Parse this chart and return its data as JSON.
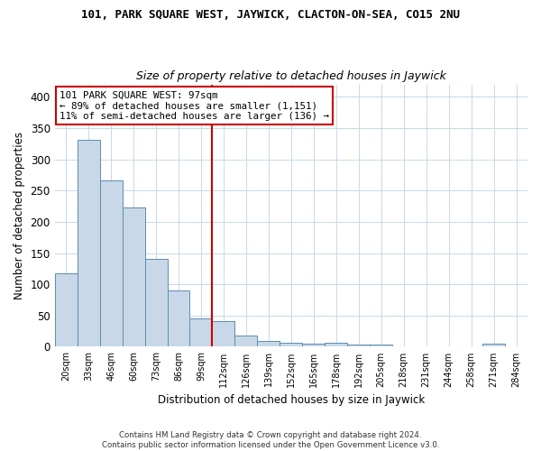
{
  "title": "101, PARK SQUARE WEST, JAYWICK, CLACTON-ON-SEA, CO15 2NU",
  "subtitle": "Size of property relative to detached houses in Jaywick",
  "xlabel": "Distribution of detached houses by size in Jaywick",
  "ylabel": "Number of detached properties",
  "bar_labels": [
    "20sqm",
    "33sqm",
    "46sqm",
    "60sqm",
    "73sqm",
    "86sqm",
    "99sqm",
    "112sqm",
    "126sqm",
    "139sqm",
    "152sqm",
    "165sqm",
    "178sqm",
    "192sqm",
    "205sqm",
    "218sqm",
    "231sqm",
    "244sqm",
    "258sqm",
    "271sqm",
    "284sqm"
  ],
  "bar_values": [
    117,
    332,
    267,
    223,
    141,
    90,
    45,
    41,
    18,
    10,
    7,
    5,
    7,
    4,
    3,
    0,
    0,
    0,
    0,
    5,
    0
  ],
  "bar_color": "#c8d8e8",
  "bar_edge_color": "#5b8db0",
  "vline_x": 6.5,
  "annotation_text": "101 PARK SQUARE WEST: 97sqm\n← 89% of detached houses are smaller (1,151)\n11% of semi-detached houses are larger (136) →",
  "ylim": [
    0,
    420
  ],
  "yticks": [
    0,
    50,
    100,
    150,
    200,
    250,
    300,
    350,
    400
  ],
  "footer1": "Contains HM Land Registry data © Crown copyright and database right 2024.",
  "footer2": "Contains public sector information licensed under the Open Government Licence v3.0.",
  "bg_color": "#ffffff",
  "grid_color": "#c8d8e8",
  "annotation_box_color": "#ffffff",
  "annotation_box_edge": "#cc0000",
  "vline_color": "#cc0000",
  "title_fontsize": 9,
  "subtitle_fontsize": 9
}
